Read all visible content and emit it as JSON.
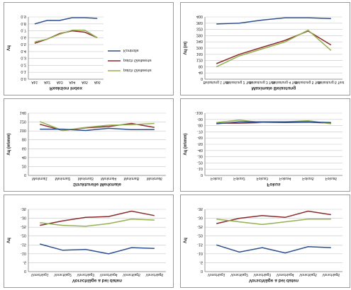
{
  "colors": {
    "red": "#8b2a2a",
    "green": "#94b050",
    "blue": "#2d4f8e",
    "grid": "#c8c8c8",
    "axis": "#7f7f7f"
  },
  "chart_data": [
    {
      "type": "line",
      "title": "Vorschläge a bei daten",
      "ylabel": "μΛ",
      "categories": [
        "Vorschlag1",
        "Vorschlag2",
        "Vorschlag3",
        "Vorschlag4",
        "Vorschlag5",
        "Vorschlag6"
      ],
      "ylim": [
        0,
        35
      ],
      "yticks": [
        0,
        5,
        10,
        15,
        20,
        25,
        30,
        35
      ],
      "ytick_labels": [
        "0",
        "-5",
        "-10",
        "-15",
        "-20",
        "-25",
        "-30",
        "-35"
      ],
      "series": [
        {
          "color": "red",
          "values": [
            27,
            30,
            31.5,
            30.5,
            34,
            32
          ]
        },
        {
          "color": "green",
          "values": [
            29.5,
            28,
            26.5,
            28,
            29.5,
            29.5
          ]
        },
        {
          "color": "blue",
          "values": [
            15,
            11,
            13.5,
            10.5,
            14,
            13.5
          ]
        }
      ]
    },
    {
      "type": "line",
      "title": "Vorschläge a bei daten",
      "ylabel": "μΛ",
      "categories": [
        "Vorschlag1",
        "Vorschlag2",
        "Vorschlag3",
        "Vorschlag4",
        "Vorschlag5",
        "Vorschlag6"
      ],
      "ylim": [
        0,
        35
      ],
      "yticks": [
        0,
        5,
        10,
        15,
        20,
        25,
        30,
        35
      ],
      "ytick_labels": [
        "0",
        "-5",
        "-10",
        "-15",
        "-20",
        "-25",
        "-30",
        "-35"
      ],
      "series": [
        {
          "color": "red",
          "values": [
            26,
            28.5,
            30.5,
            31,
            34,
            31.5
          ]
        },
        {
          "color": "green",
          "values": [
            27.5,
            26,
            25.5,
            27,
            29.5,
            29
          ]
        },
        {
          "color": "blue",
          "values": [
            15.5,
            12,
            12.5,
            10,
            13.5,
            13
          ]
        }
      ]
    },
    {
      "type": "line",
      "title": "Fokus",
      "ylabel": "(mm/m) μΛ",
      "categories": [
        "Fokus1",
        "Fokus2",
        "Fokus3",
        "Fokus4",
        "Fokus5",
        "Fokus6"
      ],
      "ylim": [
        0,
        100
      ],
      "yticks": [
        0,
        10,
        20,
        30,
        40,
        50,
        60,
        70,
        80,
        90,
        100
      ],
      "ytick_labels": [
        "0",
        "-10",
        "-20",
        "-30",
        "-40",
        "-50",
        "-60",
        "-70",
        "-80",
        "-90",
        "-100"
      ],
      "series": [
        {
          "color": "red",
          "values": [
            84,
            84,
            85,
            85,
            85.5,
            84
          ]
        },
        {
          "color": "green",
          "values": [
            85,
            89,
            85,
            86,
            88,
            83
          ]
        },
        {
          "color": "blue",
          "values": [
            83,
            86,
            86,
            86,
            86,
            85
          ]
        }
      ]
    },
    {
      "type": "line",
      "title": "Strukturelle Merkmale",
      "ylabel": "(mm/m) μΛ",
      "categories": [
        "Merkmal1",
        "Merkmal2",
        "Merkmal3",
        "Merkmal4",
        "Merkmal5",
        "Merkmal6"
      ],
      "ylim": [
        0,
        140
      ],
      "yticks": [
        0,
        20,
        40,
        60,
        80,
        100,
        120,
        140
      ],
      "ytick_labels": [
        "0",
        "20",
        "40",
        "60",
        "80",
        "100",
        "120",
        "140"
      ],
      "series": [
        {
          "color": "red",
          "values": [
            115,
            101,
            107,
            110,
            117,
            108
          ]
        },
        {
          "color": "green",
          "values": [
            121,
            101,
            108,
            113,
            114,
            117
          ]
        },
        {
          "color": "blue",
          "values": [
            104,
            104,
            101,
            106,
            103,
            103
          ]
        }
      ]
    },
    {
      "type": "line",
      "title": "Maximale Belastung",
      "ylabel": "(m) μΛ",
      "categories": [
        "Belastung 1 Test",
        "Belastung 2 Test",
        "Belastung 3 Test",
        "Belastung 4 Test",
        "Belastung 5 Test",
        "Belastung 6 Test"
      ],
      "ylim": [
        0,
        400
      ],
      "yticks": [
        0,
        40,
        80,
        120,
        160,
        200,
        240,
        280,
        320,
        360,
        400
      ],
      "ytick_labels": [
        "0",
        "40",
        "80",
        "120",
        "160",
        "200",
        "240",
        "280",
        "320",
        "360",
        "400"
      ],
      "series": [
        {
          "color": "red",
          "values": [
            100,
            160,
            205,
            250,
            310,
            220
          ]
        },
        {
          "color": "green",
          "values": [
            80,
            150,
            195,
            240,
            315,
            185
          ]
        },
        {
          "color": "blue",
          "values": [
            355,
            360,
            380,
            395,
            395,
            390
          ]
        }
      ]
    },
    {
      "type": "line",
      "title": "Reaktion Index",
      "ylabel": "μΛ",
      "categories": [
        "Ab1",
        "Ab2",
        "Ab3",
        "Ab4",
        "Ab5",
        "Ab6"
      ],
      "ylim": [
        0,
        0.9
      ],
      "yticks": [
        0,
        0.1,
        0.2,
        0.3,
        0.4,
        0.5,
        0.6,
        0.7,
        0.8,
        0.9
      ],
      "ytick_labels": [
        "0.0",
        "0.1",
        "0.2",
        "0.3",
        "0.4",
        "0.5",
        "0.6",
        "0.7",
        "0.8",
        "0.9"
      ],
      "legend": [
        "patch Gleitwerte",
        "patch Gleitwerte",
        "Kontrolle"
      ],
      "legend_colors": [
        "green",
        "red",
        "blue"
      ],
      "series": [
        {
          "color": "red",
          "values": [
            0.52,
            0.58,
            0.66,
            0.7,
            0.68,
            0.6
          ]
        },
        {
          "color": "green",
          "values": [
            0.54,
            0.58,
            0.65,
            0.71,
            0.71,
            0.6
          ]
        },
        {
          "color": "blue",
          "values": [
            0.8,
            0.85,
            0.85,
            0.89,
            0.89,
            0.88
          ]
        }
      ]
    }
  ]
}
